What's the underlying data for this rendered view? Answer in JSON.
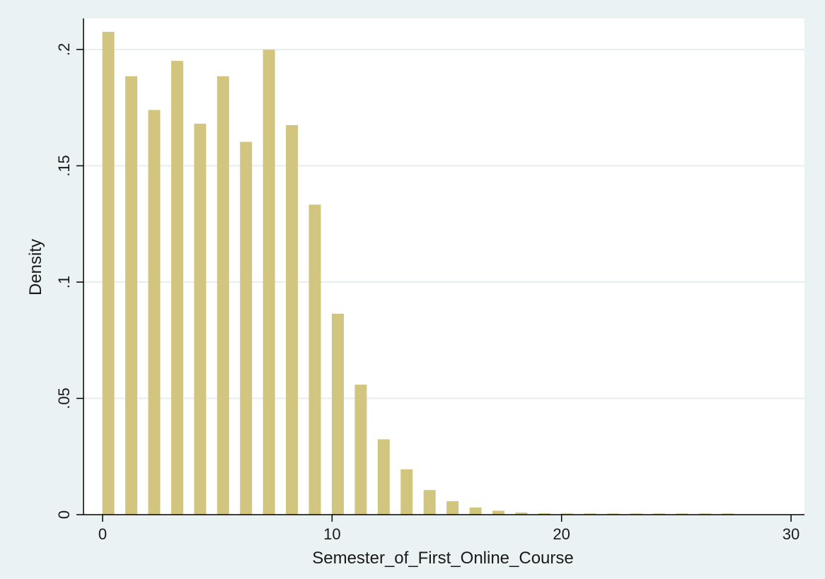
{
  "chart_data": {
    "type": "bar",
    "title": "",
    "xlabel": "Semester_of_First_Online_Course",
    "ylabel": "Density",
    "xlim": [
      0,
      30
    ],
    "ylim": [
      0,
      0.2
    ],
    "x_ticks": [
      {
        "value": 0,
        "label": "0"
      },
      {
        "value": 10,
        "label": "10"
      },
      {
        "value": 20,
        "label": "20"
      },
      {
        "value": 30,
        "label": "30"
      }
    ],
    "y_ticks": [
      {
        "value": 0,
        "label": "0"
      },
      {
        "value": 0.05,
        "label": ".05"
      },
      {
        "value": 0.1,
        "label": ".1"
      },
      {
        "value": 0.15,
        "label": ".15"
      },
      {
        "value": 0.2,
        "label": ".2"
      }
    ],
    "grid": true,
    "legend": "none",
    "bar_color": "#d2c57f",
    "bars": [
      {
        "x": 0.25,
        "density": 0.2076
      },
      {
        "x": 1.25,
        "density": 0.1885
      },
      {
        "x": 2.25,
        "density": 0.174
      },
      {
        "x": 3.25,
        "density": 0.1951
      },
      {
        "x": 4.25,
        "density": 0.1681
      },
      {
        "x": 5.25,
        "density": 0.1885
      },
      {
        "x": 6.25,
        "density": 0.1603
      },
      {
        "x": 7.25,
        "density": 0.1999
      },
      {
        "x": 8.25,
        "density": 0.1675
      },
      {
        "x": 9.25,
        "density": 0.1333
      },
      {
        "x": 10.25,
        "density": 0.0864
      },
      {
        "x": 11.25,
        "density": 0.0559
      },
      {
        "x": 12.25,
        "density": 0.0324
      },
      {
        "x": 13.25,
        "density": 0.0195
      },
      {
        "x": 14.25,
        "density": 0.0106
      },
      {
        "x": 15.25,
        "density": 0.0058
      },
      {
        "x": 16.25,
        "density": 0.0031
      },
      {
        "x": 17.25,
        "density": 0.0017
      },
      {
        "x": 18.25,
        "density": 0.0009
      },
      {
        "x": 19.25,
        "density": 0.0006
      },
      {
        "x": 20.25,
        "density": 0.0005
      },
      {
        "x": 21.25,
        "density": 0.0005
      },
      {
        "x": 22.25,
        "density": 0.0005
      },
      {
        "x": 23.25,
        "density": 0.0005
      },
      {
        "x": 24.25,
        "density": 0.0005
      },
      {
        "x": 25.25,
        "density": 0.0005
      },
      {
        "x": 26.25,
        "density": 0.0005
      },
      {
        "x": 27.25,
        "density": 0.0005
      }
    ]
  }
}
